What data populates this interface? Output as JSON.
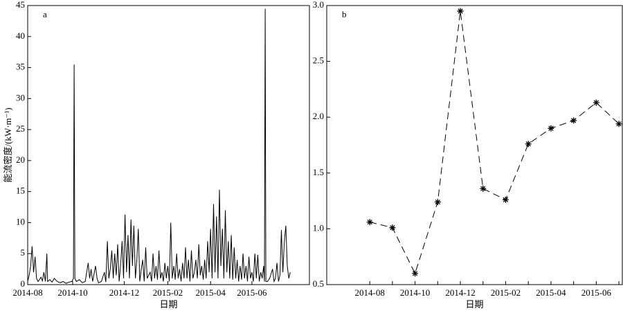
{
  "chart_data": [
    {
      "type": "line",
      "panel_label": "a",
      "x_label": "日期",
      "y_label": "能流密度/(kW·m⁻¹)",
      "color": "#000000",
      "xlim": [
        0,
        382
      ],
      "ylim": [
        0,
        45
      ],
      "xticks": [
        {
          "value": 0,
          "label": "2014-08"
        },
        {
          "value": 61,
          "label": "2014-10"
        },
        {
          "value": 131,
          "label": "2014-12"
        },
        {
          "value": 190,
          "label": "2015-02"
        },
        {
          "value": 248,
          "label": "2015-04"
        },
        {
          "value": 304,
          "label": "2015-06"
        }
      ],
      "yticks": [
        0,
        5,
        10,
        15,
        20,
        25,
        30,
        35,
        40,
        45
      ],
      "x": [
        0,
        2,
        4,
        6,
        8,
        10,
        12,
        14,
        16,
        18,
        20,
        22,
        24,
        26,
        27,
        30,
        33,
        36,
        40,
        44,
        48,
        52,
        56,
        60,
        62,
        63,
        64,
        66,
        70,
        74,
        78,
        82,
        84,
        86,
        88,
        92,
        94,
        96,
        100,
        104,
        106,
        108,
        110,
        112,
        114,
        116,
        118,
        120,
        122,
        124,
        126,
        128,
        130,
        132,
        134,
        136,
        138,
        140,
        142,
        144,
        146,
        148,
        150,
        152,
        154,
        156,
        158,
        160,
        162,
        164,
        166,
        168,
        170,
        172,
        174,
        176,
        178,
        180,
        182,
        184,
        186,
        188,
        190,
        192,
        194,
        196,
        198,
        200,
        202,
        204,
        206,
        208,
        210,
        212,
        214,
        216,
        218,
        220,
        222,
        224,
        226,
        228,
        230,
        232,
        234,
        236,
        238,
        240,
        242,
        244,
        246,
        248,
        250,
        252,
        254,
        256,
        258,
        260,
        262,
        264,
        266,
        268,
        270,
        272,
        274,
        276,
        278,
        280,
        282,
        284,
        286,
        288,
        290,
        292,
        294,
        296,
        298,
        300,
        302,
        304,
        306,
        308,
        310,
        312,
        314,
        316,
        318,
        320,
        321,
        322,
        323,
        325,
        328,
        332,
        334,
        336,
        338,
        340,
        342,
        344,
        346,
        348,
        350,
        352,
        354,
        356
      ],
      "values": [
        0.5,
        1.5,
        3,
        6.2,
        2,
        4.5,
        1,
        0.5,
        0.8,
        1.2,
        0.6,
        2,
        0.5,
        5,
        0.5,
        0.8,
        0.4,
        1,
        0.5,
        0.3,
        0.5,
        0.2,
        0.4,
        0.5,
        1,
        35.5,
        1,
        0.5,
        0.8,
        0.3,
        0.5,
        3.5,
        1,
        2.5,
        0.5,
        3,
        1,
        0.3,
        0.5,
        2,
        0.4,
        7,
        1,
        2.5,
        5.5,
        1,
        5,
        1.5,
        6.5,
        0.5,
        3,
        7,
        1,
        11.3,
        2,
        8,
        1,
        10.5,
        3,
        9.5,
        1,
        4,
        9,
        0.5,
        2.5,
        4,
        0.5,
        6,
        1,
        1.5,
        2,
        0.5,
        5,
        1,
        3,
        0.8,
        5.5,
        1,
        2,
        0.5,
        3.5,
        1,
        3,
        0.5,
        10,
        1,
        3,
        0.8,
        5,
        1,
        2.5,
        0.5,
        3.5,
        1,
        6,
        1,
        4,
        0.5,
        5.5,
        1,
        2,
        4,
        1,
        6.5,
        1.5,
        3,
        0.8,
        4,
        1,
        7,
        2,
        9,
        1,
        13,
        2,
        11,
        1,
        15.3,
        3,
        9,
        1,
        12,
        2,
        7,
        1,
        8,
        0.8,
        6,
        1,
        4,
        0.5,
        3,
        0.8,
        5,
        1,
        3,
        0.5,
        4.5,
        1,
        2,
        0.5,
        5,
        1,
        4.8,
        0.5,
        2,
        1,
        3,
        0.5,
        44.5,
        0.5,
        0.5,
        1,
        2.5,
        0.5,
        1,
        3.5,
        0.5,
        1.5,
        8.8,
        2,
        7,
        9.5,
        3,
        1,
        2
      ]
    },
    {
      "type": "line",
      "panel_label": "b",
      "x_label": "日期",
      "color": "#000000",
      "line_style": "dashed",
      "marker": "*",
      "categories": [
        "2014-08",
        null,
        "2014-10",
        null,
        "2014-12",
        null,
        "2015-02",
        null,
        "2015-04",
        null,
        "2015-06",
        null
      ],
      "xlim": [
        -1.9,
        11.15
      ],
      "ylim": [
        0.5,
        3.0
      ],
      "yticks": [
        0.5,
        {
          "value": 1.0,
          "label": "1.0"
        },
        1.5,
        {
          "value": 2.0,
          "label": "2.0"
        },
        2.5,
        {
          "value": 3.0,
          "label": "3.0"
        }
      ],
      "values": [
        1.06,
        1.01,
        0.6,
        1.24,
        2.95,
        1.36,
        1.26,
        1.76,
        1.9,
        1.97,
        2.13,
        1.94
      ]
    }
  ]
}
